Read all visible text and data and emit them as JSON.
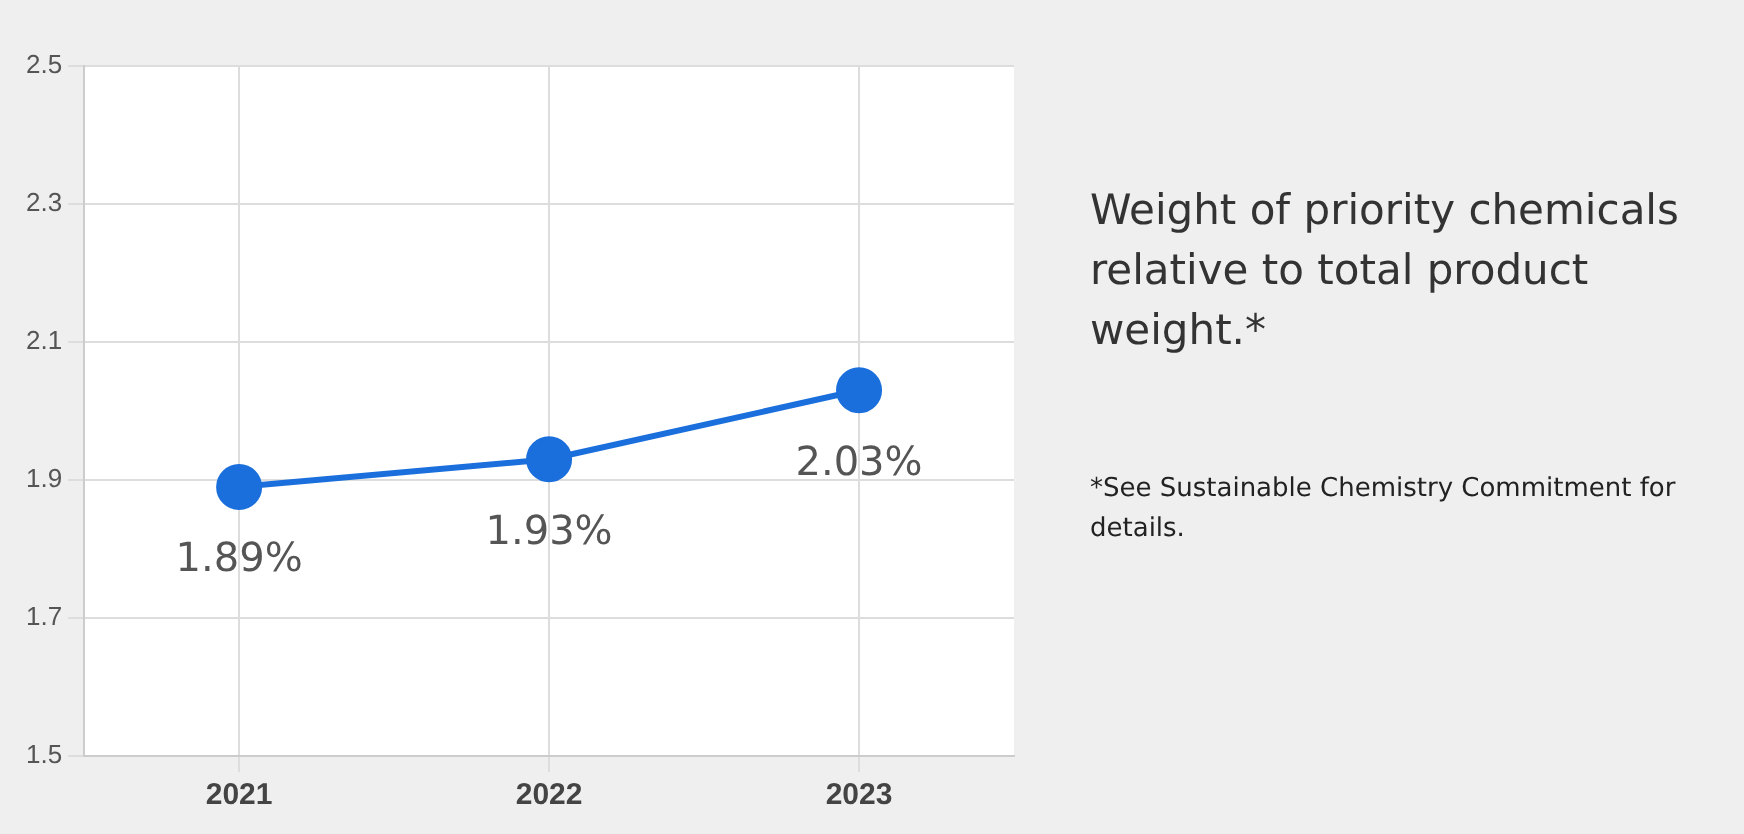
{
  "chart_data": {
    "type": "line",
    "title": "Weight of priority chemicals relative to total product weight.*",
    "categories": [
      "2021",
      "2022",
      "2023"
    ],
    "series": [
      {
        "color": "#1a6fdc",
        "values": [
          1.89,
          1.93,
          2.03
        ],
        "value_labels": [
          "1.89%",
          "1.93%",
          "2.03%"
        ]
      }
    ],
    "ylim": [
      1.5,
      2.5
    ],
    "yticks": [
      1.5,
      1.7,
      1.9,
      2.1,
      2.3,
      2.5
    ],
    "grid": true,
    "legend": false,
    "marker": "circle",
    "line_style": "solid",
    "annotations": [
      "*See Sustainable Chemistry Commitment for details."
    ]
  }
}
